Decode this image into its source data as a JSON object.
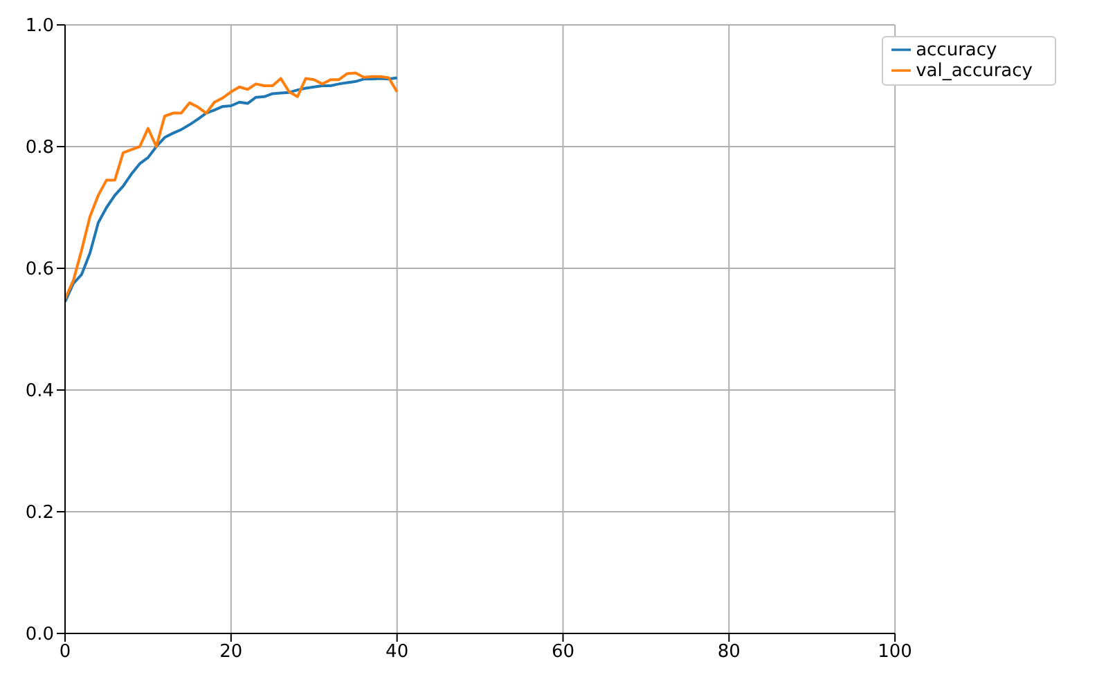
{
  "chart_data": {
    "type": "line",
    "x": [
      0,
      1,
      2,
      3,
      4,
      5,
      6,
      7,
      8,
      9,
      10,
      11,
      12,
      13,
      14,
      15,
      16,
      17,
      18,
      19,
      20,
      21,
      22,
      23,
      24,
      25,
      26,
      27,
      28,
      29,
      30,
      31,
      32,
      33,
      34,
      35,
      36,
      37,
      38,
      39,
      40
    ],
    "series": [
      {
        "name": "accuracy",
        "color": "#1f77b4",
        "values": [
          0.545,
          0.575,
          0.59,
          0.625,
          0.675,
          0.7,
          0.72,
          0.735,
          0.755,
          0.772,
          0.782,
          0.8,
          0.815,
          0.822,
          0.828,
          0.836,
          0.845,
          0.855,
          0.86,
          0.866,
          0.867,
          0.873,
          0.871,
          0.881,
          0.882,
          0.887,
          0.888,
          0.889,
          0.893,
          0.896,
          0.898,
          0.9,
          0.9,
          0.903,
          0.905,
          0.907,
          0.911,
          0.911,
          0.912,
          0.911,
          0.913
        ]
      },
      {
        "name": "val_accuracy",
        "color": "#ff7f0e",
        "values": [
          0.55,
          0.58,
          0.63,
          0.685,
          0.72,
          0.745,
          0.745,
          0.79,
          0.795,
          0.8,
          0.83,
          0.8,
          0.85,
          0.855,
          0.855,
          0.872,
          0.865,
          0.855,
          0.873,
          0.88,
          0.89,
          0.898,
          0.894,
          0.903,
          0.9,
          0.9,
          0.912,
          0.89,
          0.882,
          0.912,
          0.91,
          0.903,
          0.91,
          0.91,
          0.92,
          0.921,
          0.914,
          0.915,
          0.915,
          0.913,
          0.89
        ]
      }
    ],
    "xlim": [
      0,
      100
    ],
    "xticks": [
      0,
      20,
      40,
      60,
      80,
      100
    ],
    "ylim": [
      0,
      1
    ],
    "yticks": [
      {
        "value": 0,
        "label": "0.0"
      },
      {
        "value": 0.2,
        "label": "0.2"
      },
      {
        "value": 0.4,
        "label": "0.4"
      },
      {
        "value": 0.6,
        "label": "0.6"
      },
      {
        "value": 0.8,
        "label": "0.8"
      },
      {
        "value": 1,
        "label": "1.0"
      }
    ],
    "grid": true,
    "legend": "top right",
    "marker": "none",
    "line_style": "solid"
  }
}
